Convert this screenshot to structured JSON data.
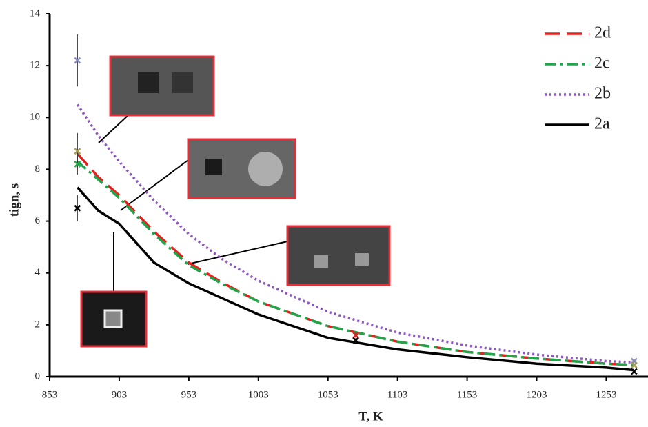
{
  "chart_data": {
    "type": "line",
    "x_label": "T, K",
    "y_label": "tign, s",
    "xlim": [
      853,
      1283
    ],
    "ylim": [
      0,
      14
    ],
    "xticks": [
      853,
      903,
      953,
      1003,
      1053,
      1103,
      1153,
      1203,
      1253
    ],
    "yticks": [
      0,
      2,
      4,
      6,
      8,
      10,
      12,
      14
    ],
    "x": [
      873,
      888,
      903,
      928,
      953,
      978,
      1003,
      1053,
      1103,
      1153,
      1203,
      1253,
      1273
    ],
    "series": [
      {
        "name": "2d",
        "color": "#e8211f",
        "dash": "22,10",
        "values": [
          8.6,
          7.7,
          7.0,
          5.6,
          4.4,
          3.6,
          2.9,
          1.95,
          1.35,
          0.95,
          0.7,
          0.5,
          0.45
        ]
      },
      {
        "name": "2c",
        "color": "#1fa64a",
        "dash": "16,6,4,6",
        "values": [
          8.3,
          7.6,
          6.9,
          5.5,
          4.3,
          3.55,
          2.9,
          1.95,
          1.35,
          0.95,
          0.7,
          0.5,
          0.45
        ]
      },
      {
        "name": "2b",
        "color": "#8e56c2",
        "dash": "3,4",
        "values": [
          10.5,
          9.3,
          8.3,
          6.8,
          5.5,
          4.5,
          3.7,
          2.5,
          1.7,
          1.2,
          0.85,
          0.6,
          0.55
        ]
      },
      {
        "name": "2a",
        "color": "#000000",
        "dash": "none",
        "values": [
          7.3,
          6.4,
          5.9,
          4.4,
          3.6,
          3.0,
          2.4,
          1.5,
          1.05,
          0.75,
          0.5,
          0.35,
          0.25
        ]
      }
    ],
    "experimental": [
      {
        "x": 873,
        "y": 12.2,
        "err": 1.0,
        "color": "#8a8fc0"
      },
      {
        "x": 873,
        "y": 8.7,
        "err": 0.7,
        "color": "#a89a50"
      },
      {
        "x": 873,
        "y": 8.2,
        "err": 0.4,
        "color": "#1fa64a"
      },
      {
        "x": 873,
        "y": 6.5,
        "err": 0.5,
        "color": "#000000"
      },
      {
        "x": 1073,
        "y": 1.6,
        "err": 0.1,
        "color": "#e8211f"
      },
      {
        "x": 1073,
        "y": 1.4,
        "err": 0.1,
        "color": "#000000"
      },
      {
        "x": 1273,
        "y": 0.6,
        "err": 0.05,
        "color": "#8a8fc0"
      },
      {
        "x": 1273,
        "y": 0.45,
        "err": 0.05,
        "color": "#a89a50"
      },
      {
        "x": 1273,
        "y": 0.2,
        "err": 0.05,
        "color": "#000000"
      }
    ],
    "legend": "upper right",
    "grid": false
  }
}
